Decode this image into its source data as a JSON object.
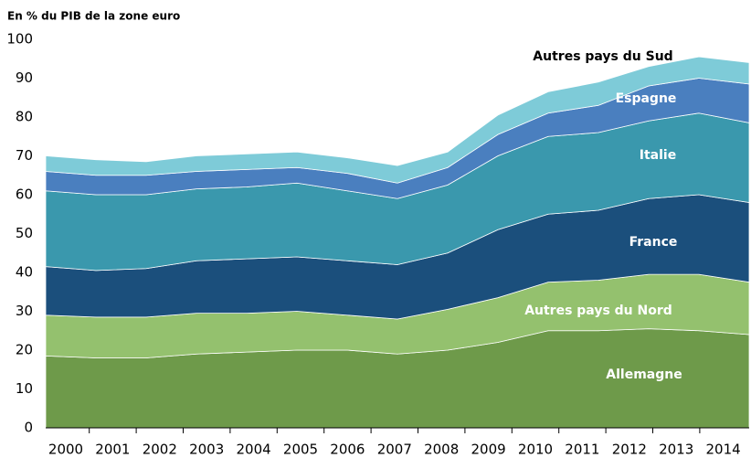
{
  "chart_data": {
    "type": "stacked_area",
    "title": "En % du PIB de la zone euro",
    "categories": [
      "2000",
      "2001",
      "2002",
      "2003",
      "2004",
      "2005",
      "2006",
      "2007",
      "2008",
      "2009",
      "2010",
      "2011",
      "2012",
      "2013",
      "2014"
    ],
    "series": [
      {
        "name": "Allemagne",
        "color": "#6e9a4a",
        "values": [
          18.5,
          18,
          18,
          19,
          19.5,
          20,
          20,
          19,
          20,
          22,
          25,
          25,
          25.5,
          25,
          24
        ]
      },
      {
        "name": "Autres pays du Nord",
        "color": "#94c16e",
        "values": [
          10.5,
          10.5,
          10.5,
          10.5,
          10,
          10,
          9,
          9,
          10.5,
          11.5,
          12.5,
          13,
          14,
          14.5,
          13.5
        ]
      },
      {
        "name": "France",
        "color": "#1b4f7c",
        "values": [
          12.5,
          12,
          12.5,
          13.5,
          14,
          14,
          14,
          14,
          14.5,
          17.5,
          17.5,
          18,
          19.5,
          20.5,
          20.5
        ]
      },
      {
        "name": "Italie",
        "color": "#3a98ad",
        "values": [
          19.5,
          19.5,
          19,
          18.5,
          18.5,
          19,
          18,
          17,
          17.5,
          19,
          20,
          20,
          20,
          21,
          20.5
        ]
      },
      {
        "name": "Espagne",
        "color": "#4a7fbf",
        "values": [
          5,
          5,
          5,
          4.5,
          4.5,
          4,
          4.5,
          4,
          4.5,
          5.5,
          6,
          7,
          9,
          9,
          10
        ]
      },
      {
        "name": "Autres pays du Sud",
        "color": "#7ecbd8",
        "values": [
          4,
          4,
          3.5,
          4,
          4,
          4,
          4,
          4.5,
          4,
          5,
          5.5,
          6,
          5,
          5.5,
          5.5
        ]
      }
    ],
    "ylim": [
      0,
      100
    ],
    "yticks": [
      0,
      10,
      20,
      30,
      40,
      50,
      60,
      70,
      80,
      90,
      100
    ]
  }
}
